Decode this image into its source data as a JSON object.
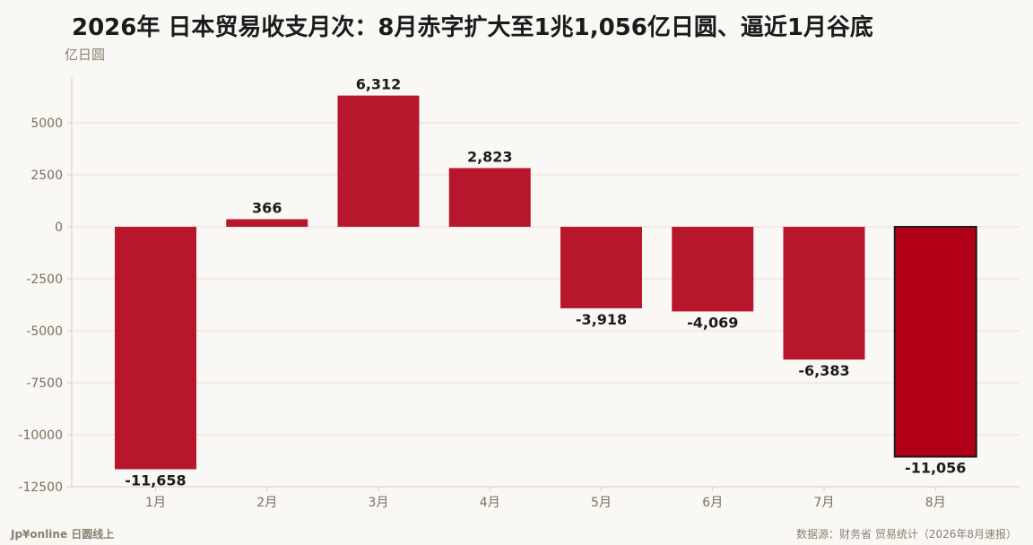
{
  "title": "2026年 日本贸易收支月次：8月赤字扩大至1兆1,056亿日圆、逼近1月谷底",
  "unit_label": "亿日圆",
  "brand": "Jp¥online 日圆线上",
  "source": "数据源：财务省 贸易统计（2026年8月速报）",
  "colors": {
    "bar": "#b8162c",
    "bar_highlight": "#b10018",
    "highlight_border": "#1b1b1b",
    "grid": "#ecdcd5",
    "axis": "#d8ccbc",
    "tick_text": "#7a6e5e",
    "value_text": "#1b1b1b",
    "background": "#faf8f4"
  },
  "chart_data": {
    "type": "bar",
    "categories": [
      "1月",
      "2月",
      "3月",
      "4月",
      "5月",
      "6月",
      "7月",
      "8月"
    ],
    "values": [
      -11658,
      366,
      6312,
      2823,
      -3918,
      -4069,
      -6383,
      -11056
    ],
    "value_labels": [
      "-11,658",
      "366",
      "6,312",
      "2,823",
      "-3,918",
      "-4,069",
      "-6,383",
      "-11,056"
    ],
    "highlight_index": 7,
    "ylim": [
      -12500,
      7200
    ],
    "yticks": [
      5000,
      2500,
      0,
      -2500,
      -5000,
      -7500,
      -10000,
      -12500
    ],
    "ytick_labels": [
      "5000",
      "2500",
      "0",
      "-2500",
      "-5000",
      "-7500",
      "-10000",
      "-12500"
    ],
    "grid": true,
    "legend": "none"
  }
}
